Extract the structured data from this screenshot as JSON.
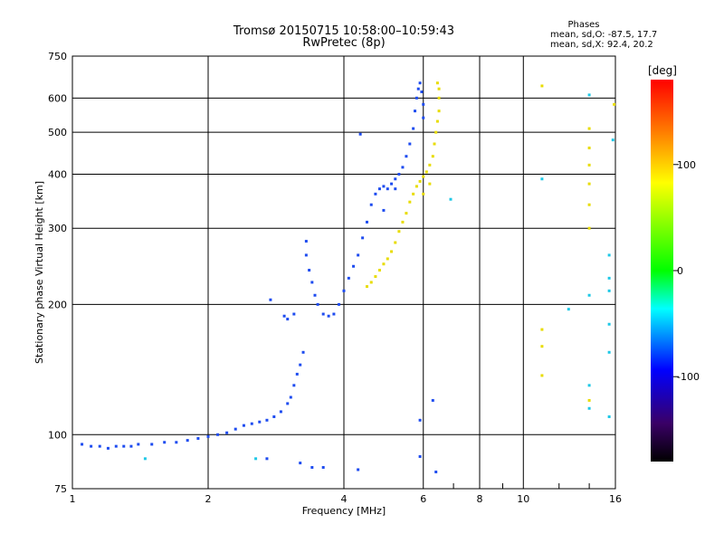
{
  "figure": {
    "title_line1": "Tromsø 20150715 10:58:00–10:59:43",
    "title_line2": "RwPretec (8p)",
    "stats_heading": "Phases",
    "stats_o": "mean, sd,O: -87.5, 17.7",
    "stats_x": "mean, sd,X:  92.4, 20.2"
  },
  "chart_data": {
    "type": "scatter",
    "xlabel": "Frequency [MHz]",
    "ylabel": "Stationary phase Virtual Height [km]",
    "xscale": "log",
    "yscale": "log",
    "xlim": [
      1,
      16
    ],
    "ylim": [
      75,
      750
    ],
    "xticks": [
      1,
      2,
      4,
      6,
      8,
      10,
      16
    ],
    "yticks": [
      75,
      100,
      200,
      300,
      400,
      500,
      600,
      750
    ],
    "grid": true,
    "colorbar": {
      "label": "[deg]",
      "range": [
        -180,
        180
      ],
      "ticks": [
        100,
        0,
        -100
      ],
      "colors": [
        "#ff0000",
        "#ff8000",
        "#ffff00",
        "#00ff00",
        "#00ffff",
        "#0000ff",
        "#3a0066",
        "#000000"
      ]
    },
    "series": [
      {
        "mode": "O",
        "mean_phase_deg": -87.5,
        "sd_phase_deg": 17.7,
        "color": "#1e4cf0",
        "points": [
          [
            1.05,
            95
          ],
          [
            1.1,
            94
          ],
          [
            1.15,
            94
          ],
          [
            1.2,
            93
          ],
          [
            1.25,
            94
          ],
          [
            1.3,
            94
          ],
          [
            1.35,
            94
          ],
          [
            1.4,
            95
          ],
          [
            1.5,
            95
          ],
          [
            1.6,
            96
          ],
          [
            1.7,
            96
          ],
          [
            1.8,
            97
          ],
          [
            1.9,
            98
          ],
          [
            2.0,
            99
          ],
          [
            2.1,
            100
          ],
          [
            2.2,
            101
          ],
          [
            2.3,
            103
          ],
          [
            2.4,
            105
          ],
          [
            2.5,
            106
          ],
          [
            2.6,
            107
          ],
          [
            2.7,
            108
          ],
          [
            2.8,
            110
          ],
          [
            2.9,
            113
          ],
          [
            3.0,
            118
          ],
          [
            3.05,
            122
          ],
          [
            3.1,
            130
          ],
          [
            3.15,
            138
          ],
          [
            3.2,
            145
          ],
          [
            3.25,
            155
          ],
          [
            2.75,
            205
          ],
          [
            2.95,
            188
          ],
          [
            3.0,
            185
          ],
          [
            3.1,
            190
          ],
          [
            3.3,
            280
          ],
          [
            3.3,
            260
          ],
          [
            3.35,
            240
          ],
          [
            3.4,
            225
          ],
          [
            3.45,
            210
          ],
          [
            3.5,
            200
          ],
          [
            3.6,
            190
          ],
          [
            3.7,
            188
          ],
          [
            3.8,
            190
          ],
          [
            3.9,
            200
          ],
          [
            4.0,
            215
          ],
          [
            4.1,
            230
          ],
          [
            4.2,
            245
          ],
          [
            4.3,
            260
          ],
          [
            4.4,
            285
          ],
          [
            4.5,
            310
          ],
          [
            4.6,
            340
          ],
          [
            4.7,
            360
          ],
          [
            4.8,
            370
          ],
          [
            4.9,
            375
          ],
          [
            5.0,
            370
          ],
          [
            5.1,
            380
          ],
          [
            5.2,
            390
          ],
          [
            5.3,
            400
          ],
          [
            5.4,
            415
          ],
          [
            5.5,
            440
          ],
          [
            5.6,
            470
          ],
          [
            5.7,
            510
          ],
          [
            5.75,
            560
          ],
          [
            5.8,
            600
          ],
          [
            5.85,
            630
          ],
          [
            5.9,
            650
          ],
          [
            5.95,
            620
          ],
          [
            6.0,
            580
          ],
          [
            6.0,
            540
          ],
          [
            4.35,
            495
          ],
          [
            4.9,
            330
          ],
          [
            5.2,
            370
          ],
          [
            2.7,
            88
          ],
          [
            3.2,
            86
          ],
          [
            3.4,
            84
          ],
          [
            3.6,
            84
          ],
          [
            4.3,
            83
          ],
          [
            5.9,
            89
          ],
          [
            6.4,
            82
          ],
          [
            5.9,
            108
          ],
          [
            6.3,
            120
          ]
        ]
      },
      {
        "mode": "X",
        "mean_phase_deg": 92.4,
        "sd_phase_deg": 20.2,
        "color": "#e8dc00",
        "points": [
          [
            4.5,
            220
          ],
          [
            4.6,
            225
          ],
          [
            4.7,
            232
          ],
          [
            4.8,
            240
          ],
          [
            4.9,
            248
          ],
          [
            5.0,
            255
          ],
          [
            5.1,
            265
          ],
          [
            5.2,
            278
          ],
          [
            5.3,
            295
          ],
          [
            5.4,
            310
          ],
          [
            5.5,
            325
          ],
          [
            5.6,
            345
          ],
          [
            5.7,
            360
          ],
          [
            5.8,
            375
          ],
          [
            5.9,
            385
          ],
          [
            6.0,
            395
          ],
          [
            6.1,
            405
          ],
          [
            6.2,
            420
          ],
          [
            6.3,
            440
          ],
          [
            6.35,
            470
          ],
          [
            6.4,
            500
          ],
          [
            6.45,
            530
          ],
          [
            6.5,
            560
          ],
          [
            6.5,
            600
          ],
          [
            6.5,
            630
          ],
          [
            6.45,
            650
          ],
          [
            6.2,
            380
          ],
          [
            6.0,
            360
          ],
          [
            11.0,
            640
          ],
          [
            11.0,
            175
          ],
          [
            11.0,
            160
          ],
          [
            11.0,
            137
          ],
          [
            14.0,
            510
          ],
          [
            14.0,
            460
          ],
          [
            14.0,
            420
          ],
          [
            14.0,
            380
          ],
          [
            14.0,
            340
          ],
          [
            14.0,
            300
          ],
          [
            14.0,
            120
          ],
          [
            15.9,
            580
          ]
        ]
      },
      {
        "mode": "other",
        "color": "#1ec8e6",
        "points": [
          [
            11.0,
            390
          ],
          [
            12.6,
            195
          ],
          [
            14.0,
            610
          ],
          [
            14.0,
            210
          ],
          [
            14.0,
            130
          ],
          [
            14.0,
            115
          ],
          [
            15.5,
            260
          ],
          [
            15.5,
            230
          ],
          [
            15.5,
            215
          ],
          [
            15.5,
            180
          ],
          [
            15.5,
            155
          ],
          [
            15.5,
            110
          ],
          [
            15.8,
            480
          ],
          [
            6.9,
            350
          ],
          [
            1.45,
            88
          ],
          [
            2.55,
            88
          ]
        ]
      }
    ]
  }
}
